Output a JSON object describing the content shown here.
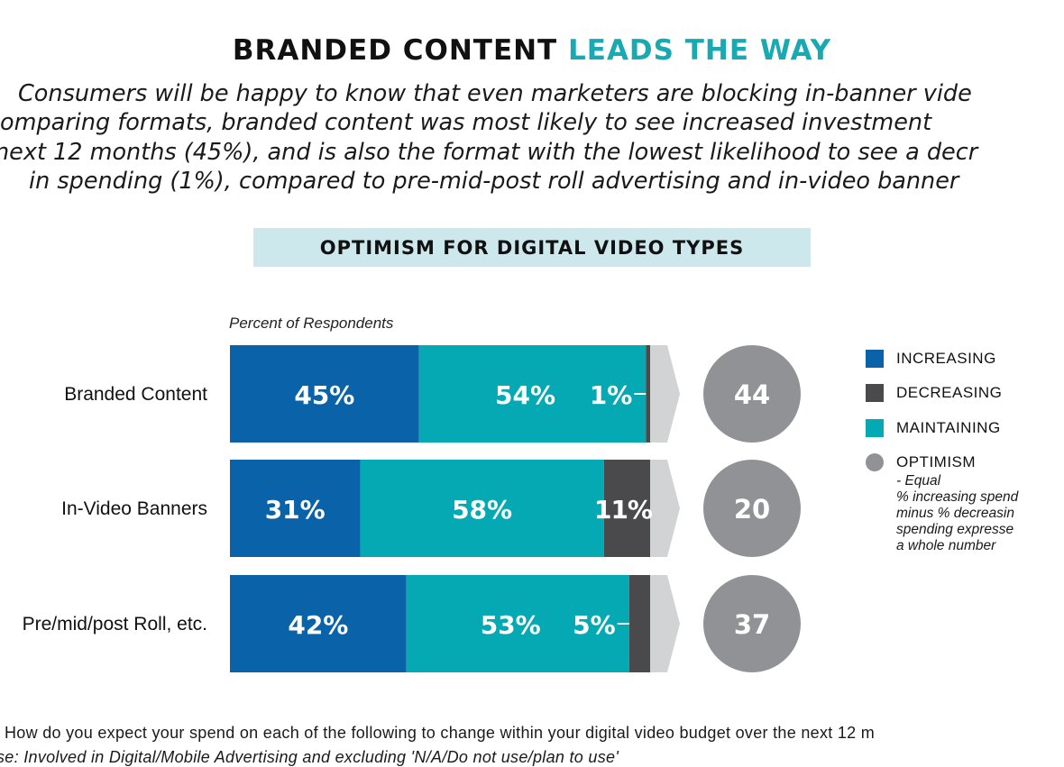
{
  "headline": {
    "part1": "BRANDED CONTENT",
    "part2": "LEADS THE WAY"
  },
  "intro_lines": [
    "Consumers will be happy to know that even marketers are blocking in-banner vide",
    "comparing formats, branded content was most likely to see increased investment",
    "next 12 months (45%), and is also the format with the lowest likelihood to see a decr",
    "in spending (1%), compared to pre-mid-post roll advertising and in-video banner"
  ],
  "banner": {
    "title": "OPTIMISM FOR DIGITAL VIDEO TYPES"
  },
  "colors": {
    "increasing": "#0a63a8",
    "maintaining": "#04a9b3",
    "decreasing": "#4a4a4c",
    "arrow": "#d2d3d5",
    "optimism": "#919295",
    "accent": "#18a9b3"
  },
  "chart_data": {
    "type": "bar",
    "orientation": "horizontal",
    "stacked": true,
    "title": "OPTIMISM FOR DIGITAL VIDEO TYPES",
    "xlabel": "Percent of Respondents",
    "categories": [
      "Branded Content",
      "In-Video Banners",
      "Pre/mid/post Roll, etc."
    ],
    "series": [
      {
        "name": "INCREASING",
        "values": [
          45,
          31,
          42
        ],
        "labels": [
          "45%",
          "31%",
          "42%"
        ]
      },
      {
        "name": "MAINTAINING",
        "values": [
          54,
          58,
          53
        ],
        "labels": [
          "54%",
          "58%",
          "53%"
        ]
      },
      {
        "name": "DECREASING",
        "values": [
          1,
          11,
          5
        ],
        "labels": [
          "1%",
          "11%",
          "5%"
        ]
      }
    ],
    "optimism": {
      "values": [
        44,
        20,
        37
      ],
      "labels": [
        "44",
        "20",
        "37"
      ]
    },
    "xlim": [
      0,
      100
    ]
  },
  "legend": {
    "increasing": "INCREASING",
    "decreasing": "DECREASING",
    "maintaining": "MAINTAINING",
    "optimism": "OPTIMISM",
    "optimism_desc": [
      "- Equal",
      "% increasing spend",
      "minus % decreasin",
      "spending expresse",
      "a whole number"
    ]
  },
  "footnote": {
    "line1": "How do you expect your spend on each of the following to change within your digital video budget over the next 12 m",
    "line2": "se:  Involved in Digital/Mobile Advertising and excluding 'N/A/Do not use/plan to use'"
  }
}
